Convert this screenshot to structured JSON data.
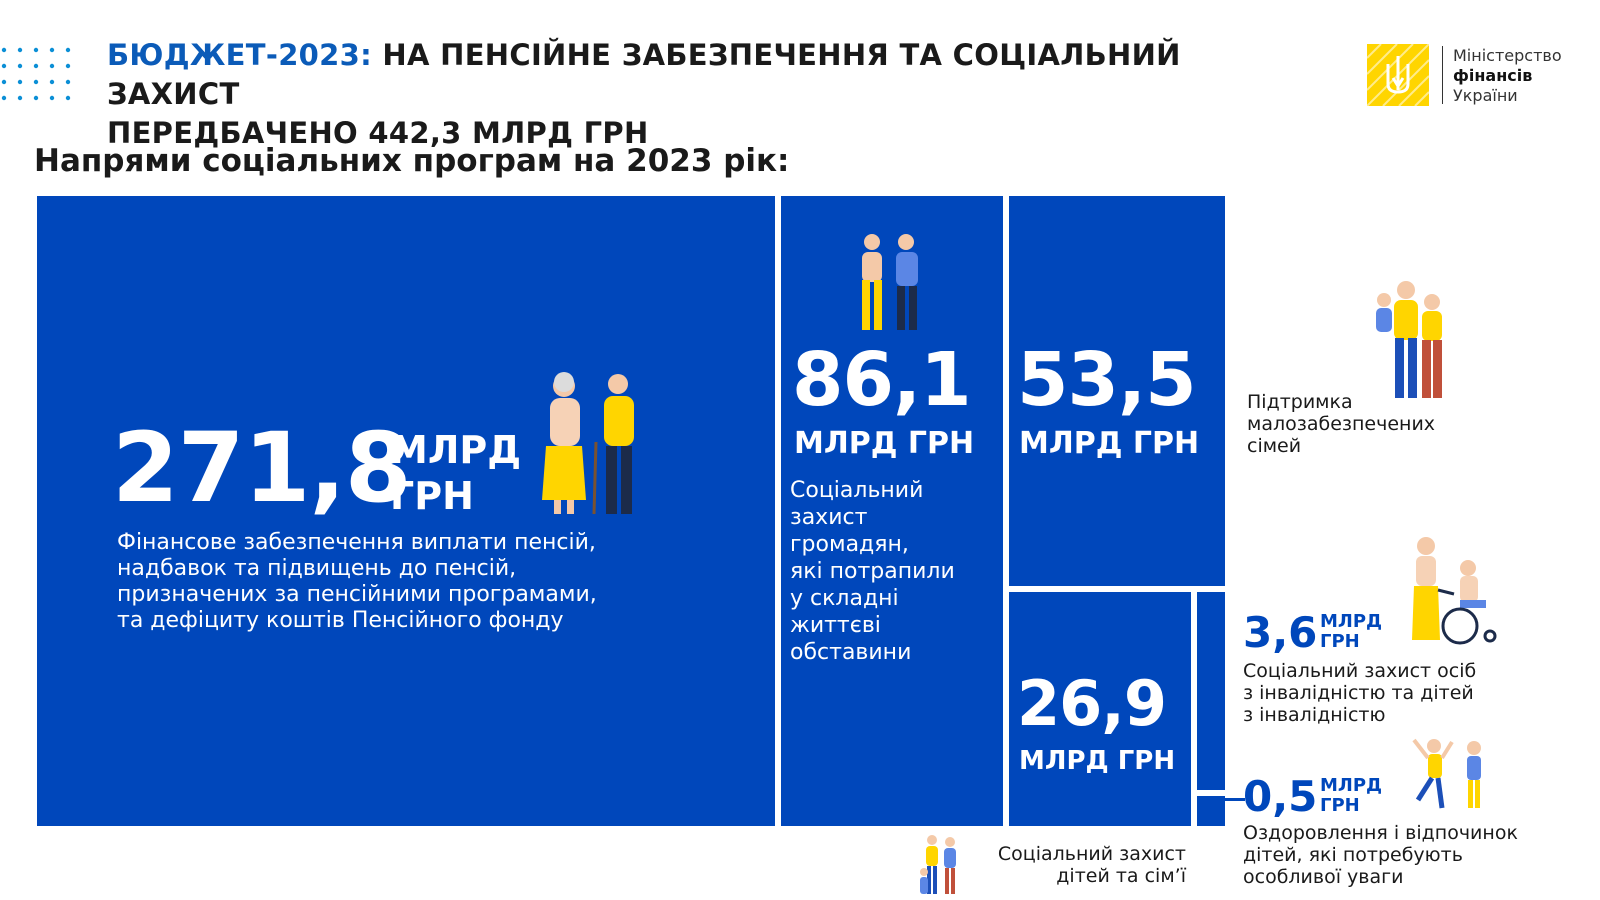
{
  "header": {
    "title_accent": "БЮДЖЕТ-2023:",
    "title_rest": " НА ПЕНСІЙНЕ ЗАБЕЗПЕЧЕННЯ ТА СОЦІАЛЬНИЙ ЗАХИСТ",
    "title_line2": "ПЕРЕДБАЧЕНО 442,3 МЛРД ГРН",
    "logo_line1": "Міністерство",
    "logo_line2": "фінансів",
    "logo_line3": "України"
  },
  "subtitle": "Напрями соціальних програм на 2023 рік:",
  "colors": {
    "block": "#0047bb",
    "accent": "#0b5bb8",
    "yellow": "#ffd500"
  },
  "chart_data": {
    "type": "treemap",
    "title": "Напрями соціальних програм на 2023 рік:",
    "unit": "МЛРД ГРН",
    "total": "442,3 МЛРД ГРН",
    "items": [
      {
        "value": 271.8,
        "value_label": "271,8",
        "unit_l1": "МЛРД",
        "unit_l2": "ГРН",
        "label": "Фінансове забезпечення виплати пенсій, надбавок та підвищень до пенсій, призначених за пенсійними програмами, та дефіциту коштів Пенсійного фонду",
        "label_lines": [
          "Фінансове забезпечення виплати пенсій,",
          "надбавок та підвищень до пенсій,",
          "призначених за пенсійними програмами,",
          "та дефіциту коштів Пенсійного фонду"
        ],
        "icon": "elderly-couple-icon"
      },
      {
        "value": 86.1,
        "value_label": "86,1",
        "unit": "МЛРД ГРН",
        "label": "Соціальний захист громадян, які потрапили у складні життєві обставини",
        "label_lines": [
          "Соціальний",
          "захист",
          "громадян,",
          "які потрапили",
          "у складні",
          "життєві",
          "обставини"
        ],
        "icon": "distressed-couple-icon"
      },
      {
        "value": 53.5,
        "value_label": "53,5",
        "unit": "МЛРД ГРН",
        "label": "Підтримка малозабезпечених сімей",
        "label_lines": [
          "Підтримка",
          "малозабезпечених",
          "сімей"
        ],
        "icon": "family-icon"
      },
      {
        "value": 26.9,
        "value_label": "26,9",
        "unit": "МЛРД ГРН",
        "label": "Соціальний захист дітей та сім’ї",
        "label_lines": [
          "Соціальний захист",
          "дітей та сім’ї"
        ],
        "icon": "parents-with-children-icon"
      },
      {
        "value": 3.6,
        "value_label": "3,6",
        "unit_l1": "МЛРД",
        "unit_l2": "ГРН",
        "label": "Соціальний захист осіб з інвалідністю та дітей з інвалідністю",
        "label_lines": [
          "Соціальний захист осіб",
          "з інвалідністю та дітей",
          "з інвалідністю"
        ],
        "icon": "wheelchair-icon"
      },
      {
        "value": 0.5,
        "value_label": "0,5",
        "unit_l1": "МЛРД",
        "unit_l2": "ГРН",
        "label": "Оздоровлення і відпочинок дітей, які потребують особливої уваги",
        "label_lines": [
          "Оздоровлення і відпочинок",
          "дітей, які потребують",
          "особливої уваги"
        ],
        "icon": "happy-children-icon"
      }
    ]
  }
}
